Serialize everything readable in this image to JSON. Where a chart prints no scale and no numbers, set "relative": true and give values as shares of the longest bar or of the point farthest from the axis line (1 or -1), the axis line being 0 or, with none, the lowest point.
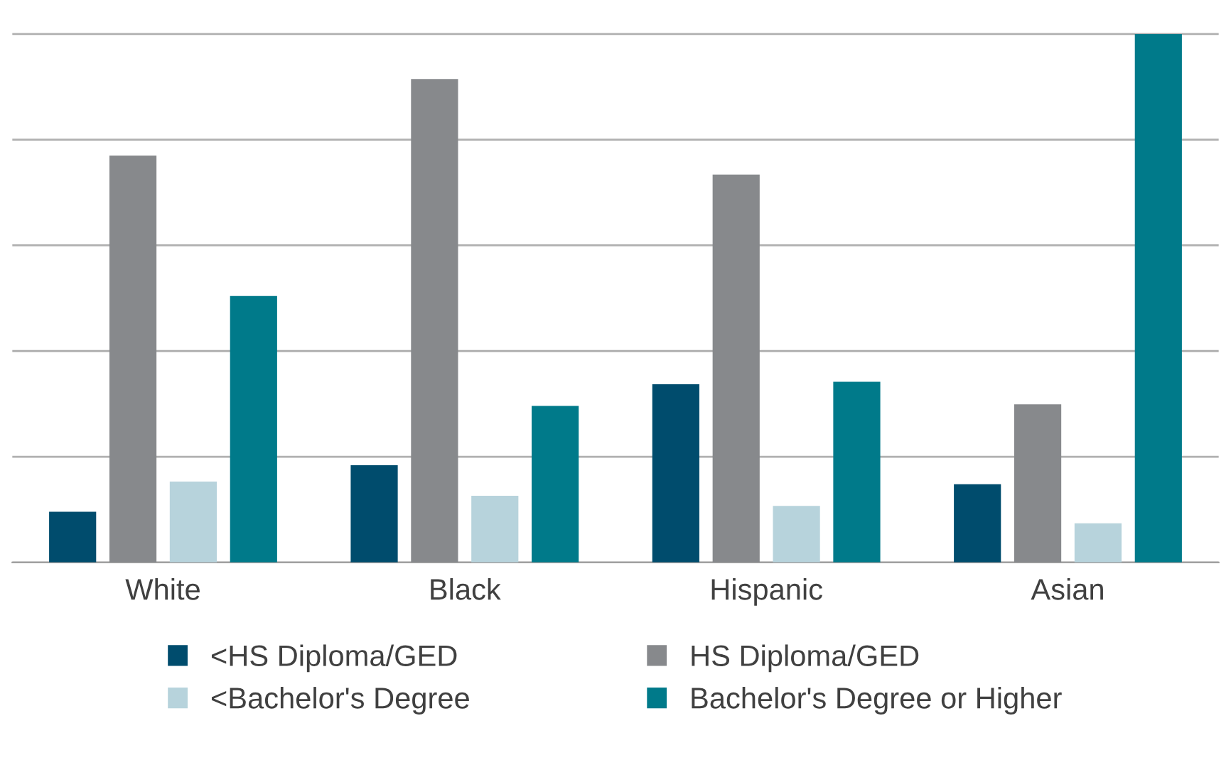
{
  "chart_data": {
    "type": "bar",
    "relative": true,
    "categories": [
      "White",
      "Black",
      "Hispanic",
      "Asian"
    ],
    "series": [
      {
        "name": "<HS Diploma/GED",
        "color": "#004c6d",
        "values": [
          0.096,
          0.184,
          0.337,
          0.148
        ]
      },
      {
        "name": "HS Diploma/GED",
        "color": "#87898c",
        "values": [
          0.77,
          0.915,
          0.734,
          0.299
        ]
      },
      {
        "name": "<Bachelor's Degree",
        "color": "#b7d3dc",
        "values": [
          0.153,
          0.126,
          0.107,
          0.074
        ]
      },
      {
        "name": "Bachelor's Degree or Higher",
        "color": "#007a8a",
        "values": [
          0.504,
          0.296,
          0.342,
          1
        ]
      }
    ],
    "grid": "y",
    "legend": "bottom",
    "tick_labels": "x"
  }
}
